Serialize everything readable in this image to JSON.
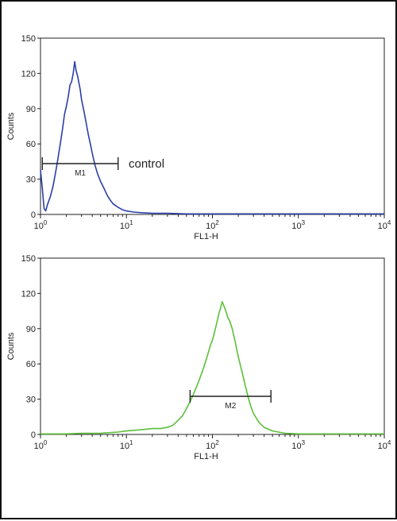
{
  "chart_data": [
    {
      "type": "line",
      "xlabel": "FL1-H",
      "ylabel": "Counts",
      "xscale": "log",
      "xlim": [
        1,
        10000
      ],
      "ylim": [
        0,
        150
      ],
      "y_ticks": [
        0,
        30,
        60,
        90,
        120,
        150
      ],
      "x_ticks": [
        1,
        10,
        100,
        1000,
        10000
      ],
      "x_tick_base": "10",
      "x_tick_exponents": [
        "0",
        "1",
        "2",
        "3",
        "4"
      ],
      "series": [
        {
          "color": "#2b3fa8",
          "x": [
            1.0,
            1.05,
            1.1,
            1.15,
            1.2,
            1.3,
            1.4,
            1.5,
            1.6,
            1.7,
            1.8,
            1.9,
            2.0,
            2.1,
            2.2,
            2.3,
            2.4,
            2.5,
            2.6,
            2.7,
            2.8,
            2.9,
            3.0,
            3.2,
            3.4,
            3.6,
            3.8,
            4.0,
            4.3,
            4.6,
            5.0,
            5.5,
            6.0,
            6.5,
            7.0,
            8.0,
            9.0,
            10,
            12,
            15,
            20,
            30,
            50,
            100,
            200,
            500,
            1000,
            3000,
            10000
          ],
          "y": [
            38,
            22,
            5,
            3,
            8,
            15,
            24,
            36,
            48,
            60,
            72,
            85,
            92,
            100,
            110,
            113,
            120,
            130,
            122,
            118,
            112,
            106,
            98,
            88,
            78,
            68,
            60,
            52,
            42,
            35,
            28,
            22,
            16,
            12,
            9,
            6,
            4,
            3,
            2,
            1.5,
            1,
            1,
            0.5,
            0.5,
            0.5,
            0.5,
            0.5,
            0.5,
            0.5
          ]
        }
      ],
      "markers": [
        {
          "label": "M1",
          "range": [
            1.05,
            8
          ]
        }
      ],
      "annotations": [
        "control"
      ]
    },
    {
      "type": "line",
      "xlabel": "FL1-H",
      "ylabel": "Counts",
      "xscale": "log",
      "xlim": [
        1,
        10000
      ],
      "ylim": [
        0,
        150
      ],
      "y_ticks": [
        0,
        30,
        60,
        90,
        120,
        150
      ],
      "x_ticks": [
        1,
        10,
        100,
        1000,
        10000
      ],
      "x_tick_base": "10",
      "x_tick_exponents": [
        "0",
        "1",
        "2",
        "3",
        "4"
      ],
      "series": [
        {
          "color": "#5cbf3a",
          "x": [
            1,
            2,
            3,
            5,
            8,
            10,
            15,
            20,
            25,
            30,
            35,
            40,
            45,
            50,
            55,
            60,
            65,
            70,
            75,
            80,
            85,
            90,
            95,
            100,
            105,
            110,
            115,
            120,
            125,
            130,
            135,
            140,
            145,
            150,
            160,
            170,
            180,
            190,
            200,
            220,
            240,
            260,
            280,
            300,
            350,
            400,
            500,
            700,
            1000,
            2000,
            5000,
            10000
          ],
          "y": [
            0.5,
            0.5,
            1,
            1,
            2,
            3,
            4,
            5,
            5,
            6,
            8,
            12,
            16,
            22,
            28,
            34,
            40,
            46,
            52,
            58,
            64,
            70,
            76,
            80,
            86,
            92,
            98,
            104,
            108,
            113,
            110,
            107,
            104,
            100,
            96,
            90,
            82,
            74,
            66,
            54,
            42,
            32,
            24,
            18,
            10,
            6,
            3,
            1,
            0.5,
            0.5,
            0.5,
            0.5
          ]
        }
      ],
      "markers": [
        {
          "label": "M2",
          "range": [
            55,
            480
          ]
        }
      ],
      "annotations": []
    }
  ]
}
